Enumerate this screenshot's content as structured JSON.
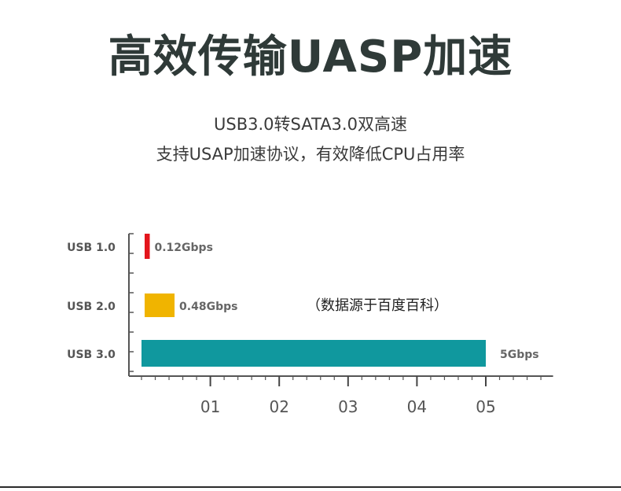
{
  "header": {
    "title": "高效传输UASP加速",
    "subtitle_line1": "USB3.0转SATA3.0双高速",
    "subtitle_line2": "支持USAP加速协议，有效降低CPU占用率"
  },
  "source_note": "（数据源于百度百科）",
  "chart_data": {
    "type": "bar",
    "orientation": "horizontal",
    "categories": [
      "USB 1.0",
      "USB 2.0",
      "USB 3.0"
    ],
    "values": [
      0.12,
      0.48,
      5
    ],
    "value_labels": [
      "0.12Gbps",
      "0.48Gbps",
      "5Gbps"
    ],
    "colors": [
      "#e3151c",
      "#f0b400",
      "#10989e"
    ],
    "xticks": [
      1,
      2,
      3,
      4,
      5
    ],
    "xtick_labels": [
      "01",
      "02",
      "03",
      "04",
      "05"
    ],
    "xlim": [
      0,
      6
    ],
    "title": "",
    "xlabel": "",
    "ylabel": "",
    "grid": false
  }
}
